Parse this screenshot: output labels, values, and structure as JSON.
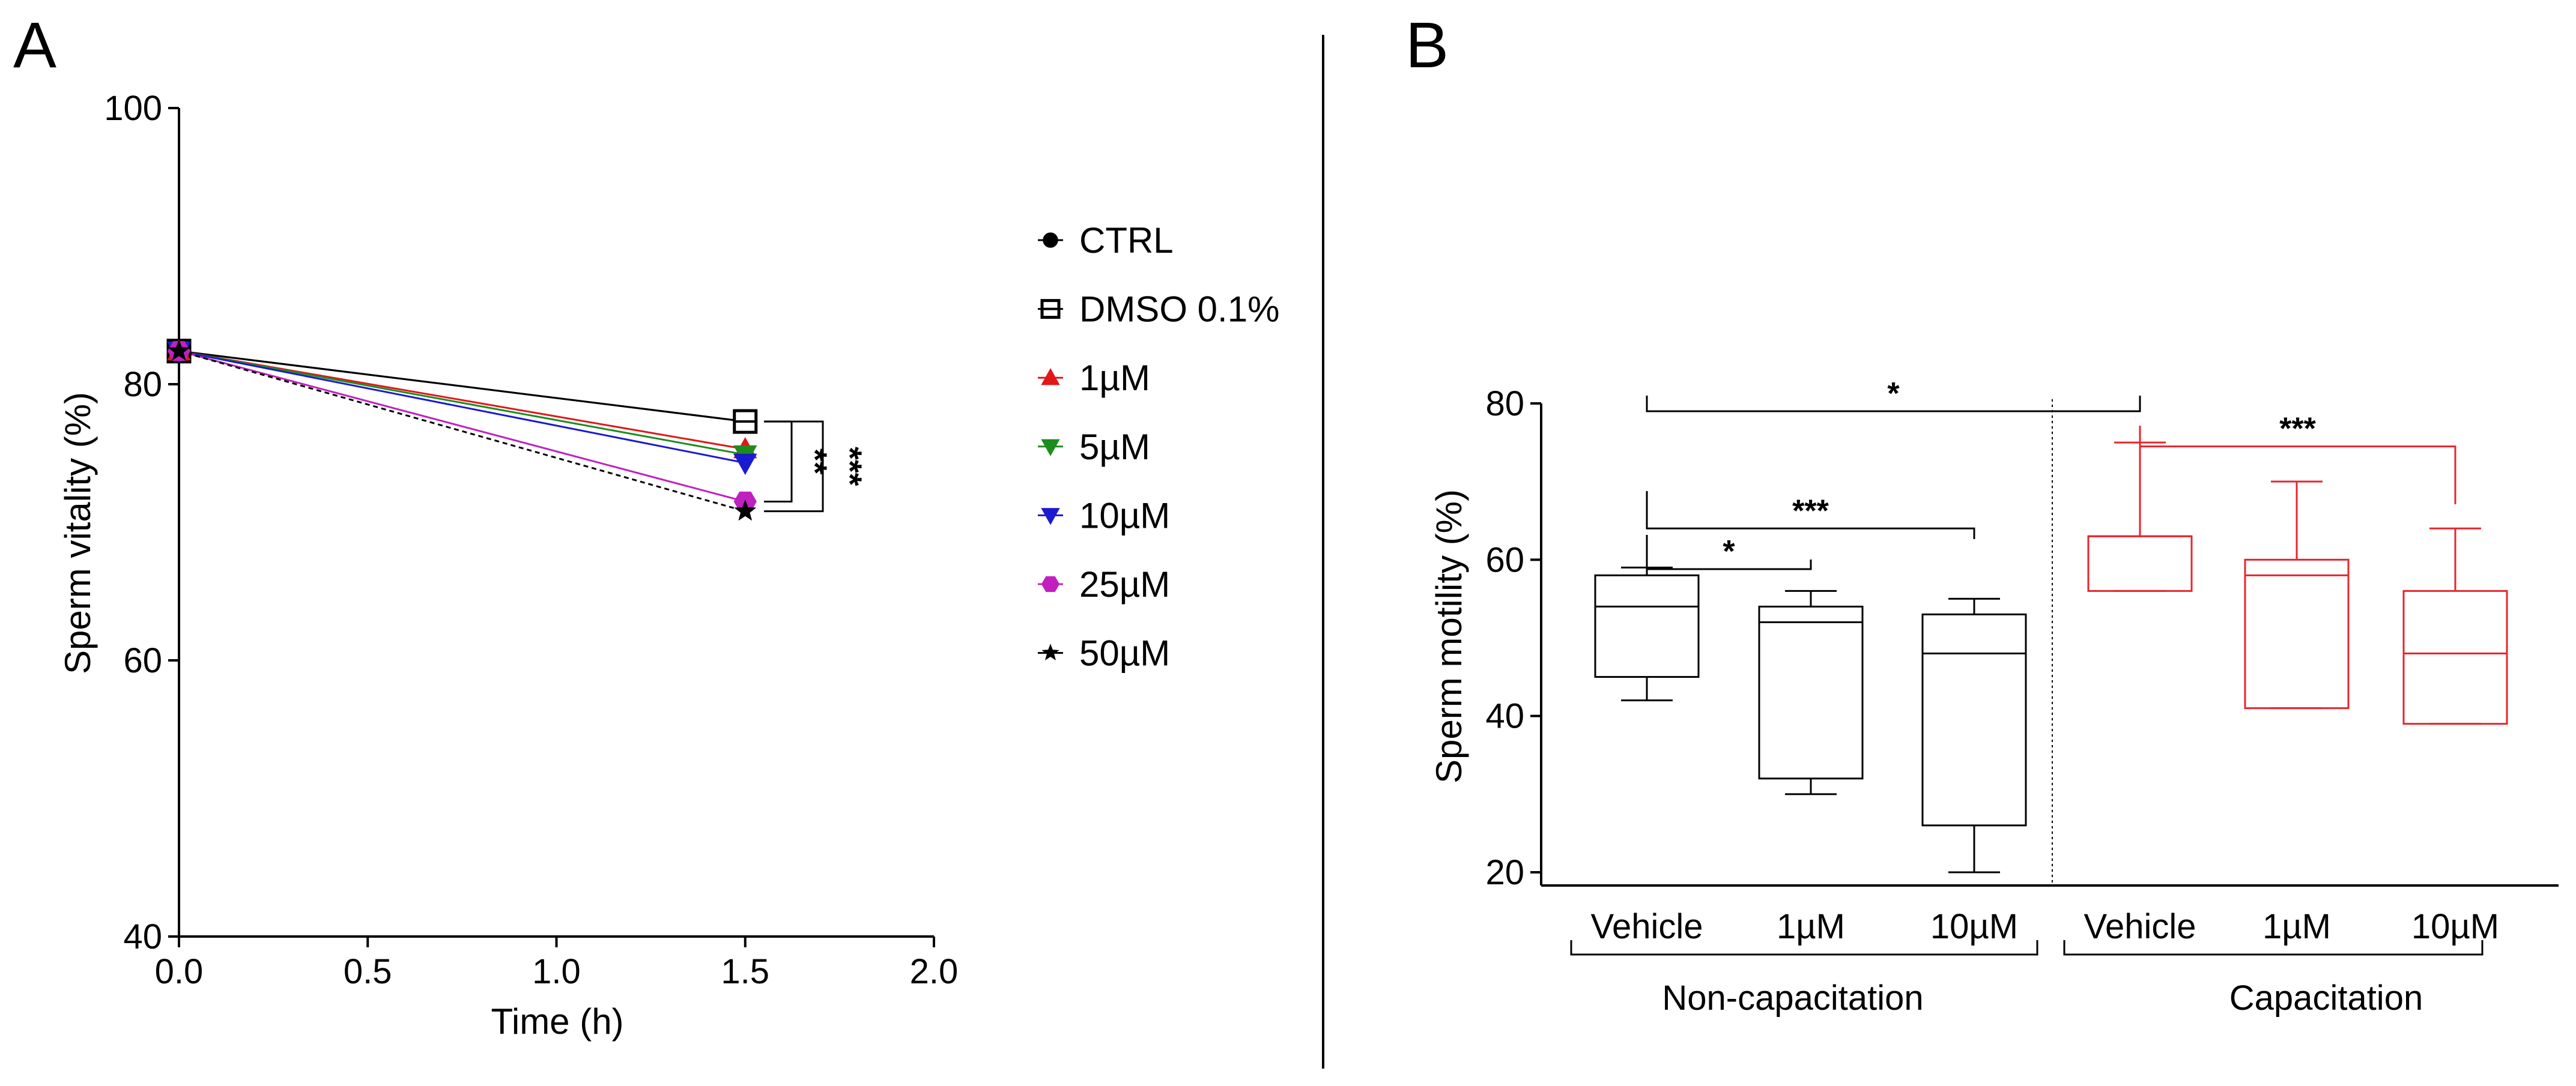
{
  "panel_a": {
    "letter": "A"
  },
  "panel_b": {
    "letter": "B"
  },
  "chart_data": [
    {
      "type": "line",
      "panel": "A",
      "xlabel": "Time (h)",
      "ylabel": "Sperm vitality (%)",
      "xlim": [
        0,
        2
      ],
      "ylim": [
        40,
        100
      ],
      "xticks": [
        "0.0",
        "0.5",
        "1.0",
        "1.5",
        "2.0"
      ],
      "yticks": [
        "40",
        "60",
        "80",
        "100"
      ],
      "legend_position": "right",
      "series": [
        {
          "name": "CTRL",
          "marker": "circle",
          "color": "#000000",
          "fill": "#000000",
          "dash": false,
          "x": [
            0,
            1.5
          ],
          "y": [
            82.4,
            77.3
          ]
        },
        {
          "name": "DMSO 0.1%",
          "marker": "square-line",
          "color": "#000000",
          "fill": "#ffffff",
          "dash": false,
          "x": [
            0,
            1.5
          ],
          "y": [
            82.4,
            77.3
          ]
        },
        {
          "name": "1µM",
          "marker": "triangle-up",
          "color": "#e01818",
          "fill": "#e01818",
          "dash": false,
          "x": [
            0,
            1.5
          ],
          "y": [
            82.4,
            75.3
          ]
        },
        {
          "name": "5µM",
          "marker": "triangle-down",
          "color": "#1e8c1e",
          "fill": "#1e8c1e",
          "dash": false,
          "x": [
            0,
            1.5
          ],
          "y": [
            82.4,
            74.9
          ]
        },
        {
          "name": "10µM",
          "marker": "triangle-down",
          "color": "#1a1ad0",
          "fill": "#1a1ad0",
          "dash": false,
          "x": [
            0,
            1.5
          ],
          "y": [
            82.4,
            74.3
          ]
        },
        {
          "name": "25µM",
          "marker": "hexagon",
          "color": "#c020c0",
          "fill": "#c020c0",
          "dash": false,
          "x": [
            0,
            1.5
          ],
          "y": [
            82.4,
            71.5
          ]
        },
        {
          "name": "50µM",
          "marker": "star",
          "color": "#000000",
          "fill": "#000000",
          "dash": true,
          "x": [
            0,
            1.5
          ],
          "y": [
            82.4,
            70.8
          ]
        }
      ],
      "significance": [
        {
          "label": "**",
          "y_from": 77.3,
          "y_to": 71.5
        },
        {
          "label": "***",
          "y_from": 77.3,
          "y_to": 70.8
        }
      ]
    },
    {
      "type": "box",
      "panel": "B",
      "ylabel": "Sperm motility (%)",
      "ylim": [
        18,
        80
      ],
      "yticks": [
        "20",
        "40",
        "60",
        "80"
      ],
      "categories": [
        "Vehicle",
        "1µM",
        "10µM",
        "Vehicle",
        "1µM",
        "10µM"
      ],
      "groups": [
        {
          "label": "Non-capacitation",
          "color": "#000000",
          "boxes": [
            {
              "category": "Vehicle",
              "min": 42,
              "q1": 45,
              "median": 54,
              "q3": 58,
              "max": 59
            },
            {
              "category": "1µM",
              "min": 30,
              "q1": 32,
              "median": 52,
              "q3": 54,
              "max": 56
            },
            {
              "category": "10µM",
              "min": 20,
              "q1": 26,
              "median": 48,
              "q3": 53,
              "max": 55
            }
          ]
        },
        {
          "label": "Capacitation",
          "color": "#e8242c",
          "boxes": [
            {
              "category": "Vehicle",
              "min": 56,
              "q1": 56,
              "median": 63,
              "q3": 63,
              "max": 75
            },
            {
              "category": "1µM",
              "min": 41,
              "q1": 41,
              "median": 58,
              "q3": 60,
              "max": 70
            },
            {
              "category": "10µM",
              "min": 39,
              "q1": 39,
              "median": 48,
              "q3": 56,
              "max": 64
            }
          ]
        }
      ],
      "significance": [
        {
          "label": "*",
          "from": 0,
          "to": 3,
          "y": 79,
          "color": "#000000"
        },
        {
          "label": "***",
          "from": 3,
          "to": 5,
          "y": 74.5,
          "color": "#e8242c"
        },
        {
          "label": "***",
          "from": 0,
          "to": 2,
          "y": 64,
          "color": "#000000"
        },
        {
          "label": "*",
          "from": 0,
          "to": 1,
          "y": 58.8,
          "color": "#000000"
        }
      ]
    }
  ]
}
